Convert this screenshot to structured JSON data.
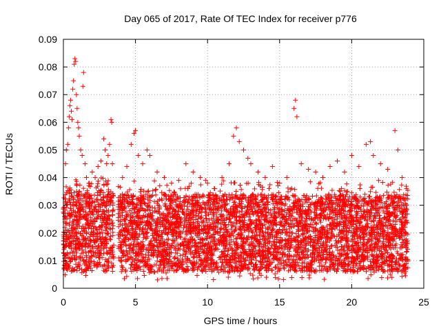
{
  "chart_data": {
    "type": "scatter",
    "title": "Day 065 of 2017, Rate Of TEC Index for receiver p776",
    "xlabel": "GPS time / hours",
    "ylabel": "ROTI / TECUs",
    "xlim": [
      0,
      25
    ],
    "ylim": [
      0,
      0.09
    ],
    "x_ticks": [
      "0",
      "5",
      "10",
      "15",
      "20",
      "25"
    ],
    "y_ticks": [
      "0",
      "0.01",
      "0.02",
      "0.03",
      "0.04",
      "0.05",
      "0.06",
      "0.07",
      "0.08",
      "0.09"
    ],
    "grid": true,
    "marker": "plus",
    "color": "#ff0000",
    "data_gap_hours": [
      3.5,
      3.8
    ],
    "series": [
      {
        "values": [
          [
            0.0,
            0.029
          ],
          [
            0.1,
            0.022
          ],
          [
            0.15,
            0.045
          ],
          [
            0.2,
            0.05
          ],
          [
            0.3,
            0.052
          ],
          [
            0.35,
            0.058
          ],
          [
            0.4,
            0.062
          ],
          [
            0.45,
            0.066
          ],
          [
            0.5,
            0.068
          ],
          [
            0.55,
            0.064
          ],
          [
            0.6,
            0.061
          ],
          [
            0.65,
            0.072
          ],
          [
            0.7,
            0.075
          ],
          [
            0.75,
            0.081
          ],
          [
            0.8,
            0.083
          ],
          [
            0.85,
            0.082
          ],
          [
            0.9,
            0.07
          ],
          [
            0.95,
            0.065
          ],
          [
            1.0,
            0.06
          ],
          [
            1.05,
            0.058
          ],
          [
            1.1,
            0.055
          ],
          [
            1.2,
            0.05
          ],
          [
            1.3,
            0.048
          ],
          [
            1.35,
            0.073
          ],
          [
            1.4,
            0.078
          ],
          [
            1.5,
            0.045
          ],
          [
            1.6,
            0.04
          ],
          [
            1.8,
            0.038
          ],
          [
            2.0,
            0.042
          ],
          [
            2.2,
            0.04
          ],
          [
            2.4,
            0.044
          ],
          [
            2.6,
            0.046
          ],
          [
            2.8,
            0.054
          ],
          [
            2.9,
            0.05
          ],
          [
            3.0,
            0.045
          ],
          [
            3.1,
            0.048
          ],
          [
            3.2,
            0.052
          ],
          [
            3.3,
            0.061
          ],
          [
            3.35,
            0.06
          ],
          [
            3.4,
            0.045
          ],
          [
            4.1,
            0.04
          ],
          [
            4.4,
            0.044
          ],
          [
            4.7,
            0.052
          ],
          [
            4.9,
            0.056
          ],
          [
            5.0,
            0.057
          ],
          [
            5.2,
            0.048
          ],
          [
            5.5,
            0.045
          ],
          [
            5.8,
            0.05
          ],
          [
            6.0,
            0.048
          ],
          [
            6.5,
            0.042
          ],
          [
            7.0,
            0.04
          ],
          [
            7.5,
            0.038
          ],
          [
            8.0,
            0.039
          ],
          [
            8.5,
            0.045
          ],
          [
            9.0,
            0.042
          ],
          [
            9.5,
            0.04
          ],
          [
            10.0,
            0.038
          ],
          [
            10.5,
            0.036
          ],
          [
            11.0,
            0.04
          ],
          [
            11.5,
            0.045
          ],
          [
            11.8,
            0.055
          ],
          [
            12.0,
            0.058
          ],
          [
            12.2,
            0.053
          ],
          [
            12.5,
            0.05
          ],
          [
            12.8,
            0.047
          ],
          [
            13.0,
            0.045
          ],
          [
            13.5,
            0.042
          ],
          [
            14.0,
            0.04
          ],
          [
            14.5,
            0.044
          ],
          [
            15.0,
            0.038
          ],
          [
            15.5,
            0.04
          ],
          [
            16.0,
            0.065
          ],
          [
            16.1,
            0.068
          ],
          [
            16.2,
            0.062
          ],
          [
            16.5,
            0.045
          ],
          [
            17.0,
            0.043
          ],
          [
            17.5,
            0.042
          ],
          [
            18.0,
            0.04
          ],
          [
            18.5,
            0.044
          ],
          [
            19.0,
            0.046
          ],
          [
            19.5,
            0.042
          ],
          [
            20.0,
            0.048
          ],
          [
            20.5,
            0.044
          ],
          [
            21.0,
            0.052
          ],
          [
            21.3,
            0.053
          ],
          [
            21.5,
            0.048
          ],
          [
            22.0,
            0.045
          ],
          [
            22.5,
            0.043
          ],
          [
            23.0,
            0.057
          ],
          [
            23.2,
            0.05
          ],
          [
            23.5,
            0.04
          ],
          [
            23.8,
            0.036
          ]
        ]
      }
    ]
  }
}
